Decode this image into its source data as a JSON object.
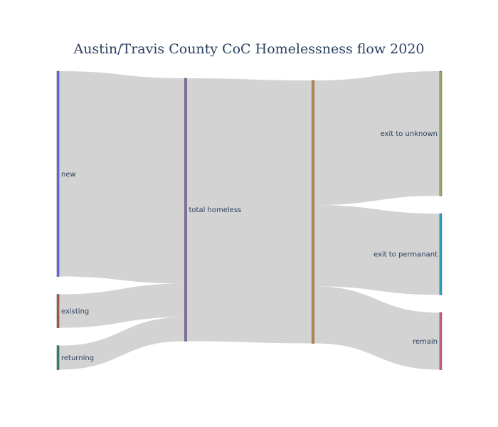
{
  "chart_data": {
    "type": "sankey",
    "title": "Austin/Travis County CoC Homelessness flow 2020",
    "nodes": [
      {
        "id": "new",
        "label": "new",
        "color": "#636efa",
        "column": 0
      },
      {
        "id": "existing",
        "label": "existing",
        "color": "#b55a4a",
        "column": 0
      },
      {
        "id": "returning",
        "label": "returning",
        "color": "#2f8a6e",
        "column": 0
      },
      {
        "id": "total",
        "label": "total homeless",
        "color": "#8e62c9",
        "column": 1
      },
      {
        "id": "exit_unknown",
        "label": "exit to unknown",
        "color": "#9ab46a",
        "column": 3
      },
      {
        "id": "exit_perm",
        "label": "exit to permanant",
        "color": "#2aa6c5",
        "column": 3
      },
      {
        "id": "remain",
        "label": "remain",
        "color": "#c9628a",
        "column": 3
      }
    ],
    "bridge_node": {
      "id": "bridge",
      "label": "",
      "color": "#c8843f",
      "column": 2
    },
    "links": [
      {
        "source": "new",
        "target": "total",
        "value": 7840
      },
      {
        "source": "existing",
        "target": "total",
        "value": 1280
      },
      {
        "source": "returning",
        "target": "total",
        "value": 920
      },
      {
        "source": "total",
        "target": "bridge",
        "value": 10040
      },
      {
        "source": "bridge",
        "target": "exit_unknown",
        "value": 4760
      },
      {
        "source": "bridge",
        "target": "exit_perm",
        "value": 3100
      },
      {
        "source": "bridge",
        "target": "remain",
        "value": 2180
      }
    ],
    "link_color": "#d3d3d3"
  }
}
